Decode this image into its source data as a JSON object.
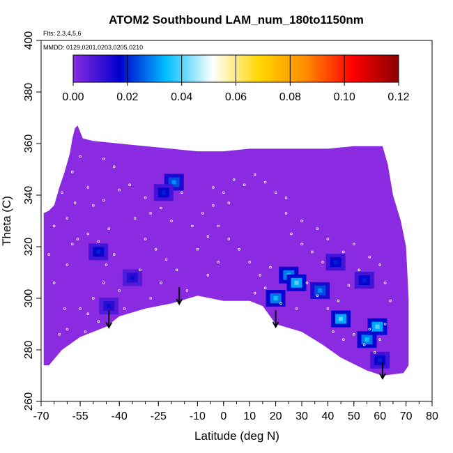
{
  "chart_data": {
    "type": "heatmap",
    "title": "ATOM2 Southbound LAM_num_180to1150nm",
    "annotations": [
      "Flts: 2,3,4,5,6",
      "MMDD: 0129,0201,0203,0205,0210"
    ],
    "xlabel": "Latitude (deg N)",
    "ylabel": "Theta (C)",
    "xlim": [
      -70,
      80
    ],
    "ylim": [
      260,
      400
    ],
    "xticks": [
      -70,
      -55,
      -40,
      -25,
      -10,
      0,
      10,
      20,
      30,
      40,
      50,
      60,
      70,
      80
    ],
    "xtick_labels": [
      "-70",
      "-55",
      "-40",
      "-25",
      "-10",
      "0",
      "10",
      "20",
      "30",
      "40",
      "50",
      "60",
      "70",
      "80"
    ],
    "yticks": [
      260,
      280,
      300,
      320,
      340,
      360,
      380,
      400
    ],
    "ytick_labels": [
      "260",
      "280",
      "300",
      "320",
      "340",
      "360",
      "380",
      "400"
    ],
    "colorbar": {
      "range": [
        0,
        0.12
      ],
      "ticks": [
        0.0,
        0.02,
        0.04,
        0.06,
        0.08,
        0.1,
        0.12
      ],
      "tick_labels": [
        "0.00",
        "0.02",
        "0.04",
        "0.06",
        "0.08",
        "0.10",
        "0.12"
      ],
      "colors": [
        "#8a2be2",
        "#0000cd",
        "#00bfff",
        "#ffffff",
        "#ffd700",
        "#ff8c00",
        "#ff0000",
        "#8b0000"
      ]
    },
    "field_background_value": 0.0,
    "filled_region_boundary": [
      [
        -69,
        274
      ],
      [
        -69,
        333
      ],
      [
        -67,
        334
      ],
      [
        -65,
        336
      ],
      [
        -63,
        343
      ],
      [
        -61,
        349
      ],
      [
        -59,
        356
      ],
      [
        -58,
        362
      ],
      [
        -57,
        366
      ],
      [
        -56,
        367
      ],
      [
        -54,
        362
      ],
      [
        -50,
        361
      ],
      [
        -40,
        360
      ],
      [
        -30,
        359
      ],
      [
        -20,
        358
      ],
      [
        -10,
        357
      ],
      [
        0,
        357
      ],
      [
        10,
        358
      ],
      [
        20,
        358
      ],
      [
        30,
        358
      ],
      [
        40,
        358
      ],
      [
        50,
        359
      ],
      [
        61,
        359
      ],
      [
        63,
        352
      ],
      [
        65,
        340
      ],
      [
        68,
        330
      ],
      [
        70,
        320
      ],
      [
        71,
        300
      ],
      [
        71,
        274
      ],
      [
        69,
        271
      ],
      [
        61,
        270
      ],
      [
        55,
        272
      ],
      [
        45,
        277
      ],
      [
        38,
        282
      ],
      [
        30,
        287
      ],
      [
        20,
        290
      ],
      [
        15,
        297
      ],
      [
        10,
        299
      ],
      [
        0,
        299
      ],
      [
        -10,
        301
      ],
      [
        -20,
        298
      ],
      [
        -30,
        296
      ],
      [
        -40,
        293
      ],
      [
        -45,
        289
      ],
      [
        -50,
        287
      ],
      [
        -55,
        285
      ],
      [
        -62,
        280
      ],
      [
        -67,
        274
      ]
    ],
    "hotspots": [
      {
        "lat": -19,
        "theta": 345,
        "value": 0.03
      },
      {
        "lat": -23,
        "theta": 341,
        "value": 0.02
      },
      {
        "lat": -35,
        "theta": 308,
        "value": 0.015
      },
      {
        "lat": -48,
        "theta": 318,
        "value": 0.02
      },
      {
        "lat": -44,
        "theta": 297,
        "value": 0.015
      },
      {
        "lat": 20,
        "theta": 300,
        "value": 0.035
      },
      {
        "lat": 25,
        "theta": 309,
        "value": 0.035
      },
      {
        "lat": 28,
        "theta": 306,
        "value": 0.04
      },
      {
        "lat": 37,
        "theta": 303,
        "value": 0.03
      },
      {
        "lat": 45,
        "theta": 292,
        "value": 0.04
      },
      {
        "lat": 43,
        "theta": 314,
        "value": 0.02
      },
      {
        "lat": 54,
        "theta": 307,
        "value": 0.02
      },
      {
        "lat": 55,
        "theta": 284,
        "value": 0.035
      },
      {
        "lat": 59,
        "theta": 289,
        "value": 0.04
      },
      {
        "lat": 60,
        "theta": 276,
        "value": 0.02
      }
    ],
    "arrows_lat": [
      -44,
      -17,
      20,
      61
    ],
    "points": [
      [
        -60,
        313
      ],
      [
        -58,
        321
      ],
      [
        -56,
        323
      ],
      [
        -52,
        325
      ],
      [
        -48,
        322
      ],
      [
        -44,
        327
      ],
      [
        -42,
        317
      ],
      [
        -50,
        300
      ],
      [
        -46,
        306
      ],
      [
        -55,
        296
      ],
      [
        -52,
        294
      ],
      [
        -40,
        303
      ],
      [
        -38,
        296
      ],
      [
        -36,
        290
      ],
      [
        -60,
        288
      ],
      [
        -63,
        286
      ],
      [
        -57,
        283
      ],
      [
        -53,
        287
      ],
      [
        -48,
        291
      ],
      [
        -30,
        323
      ],
      [
        -26,
        319
      ],
      [
        -22,
        315
      ],
      [
        -18,
        311
      ],
      [
        -14,
        303
      ],
      [
        -10,
        319
      ],
      [
        -6,
        324
      ],
      [
        -2,
        328
      ],
      [
        2,
        323
      ],
      [
        6,
        319
      ],
      [
        10,
        314
      ],
      [
        14,
        309
      ],
      [
        18,
        312
      ],
      [
        -34,
        331
      ],
      [
        -28,
        333
      ],
      [
        -24,
        335
      ],
      [
        -20,
        330
      ],
      [
        -12,
        328
      ],
      [
        -8,
        333
      ],
      [
        -4,
        336
      ],
      [
        0,
        341
      ],
      [
        4,
        346
      ],
      [
        8,
        344
      ],
      [
        12,
        348
      ],
      [
        16,
        345
      ],
      [
        20,
        341
      ],
      [
        24,
        339
      ],
      [
        -50,
        336
      ],
      [
        -46,
        338
      ],
      [
        -40,
        342
      ],
      [
        -36,
        344
      ],
      [
        -30,
        339
      ],
      [
        -42,
        351
      ],
      [
        -46,
        354
      ],
      [
        -55,
        355
      ],
      [
        -58,
        349
      ],
      [
        -62,
        341
      ],
      [
        -65,
        328
      ],
      [
        -67,
        317
      ],
      [
        -65,
        306
      ],
      [
        -61,
        296
      ],
      [
        26,
        325
      ],
      [
        30,
        321
      ],
      [
        34,
        318
      ],
      [
        38,
        314
      ],
      [
        32,
        306
      ],
      [
        36,
        301
      ],
      [
        40,
        296
      ],
      [
        44,
        299
      ],
      [
        48,
        305
      ],
      [
        52,
        311
      ],
      [
        56,
        316
      ],
      [
        60,
        313
      ],
      [
        62,
        306
      ],
      [
        64,
        299
      ],
      [
        46,
        318
      ],
      [
        50,
        321
      ],
      [
        40,
        323
      ],
      [
        36,
        327
      ],
      [
        30,
        330
      ],
      [
        24,
        333
      ],
      [
        56,
        288
      ],
      [
        54,
        282
      ],
      [
        58,
        279
      ],
      [
        60,
        284
      ],
      [
        62,
        290
      ],
      [
        50,
        286
      ],
      [
        46,
        284
      ],
      [
        42,
        287
      ],
      [
        28,
        296
      ],
      [
        22,
        298
      ],
      [
        16,
        304
      ],
      [
        12,
        302
      ],
      [
        -6,
        309
      ],
      [
        -2,
        314
      ],
      [
        -24,
        306
      ],
      [
        -28,
        300
      ],
      [
        -32,
        311
      ],
      [
        -45,
        313
      ],
      [
        -60,
        331
      ],
      [
        -57,
        337
      ],
      [
        -52,
        343
      ],
      [
        -4,
        343
      ],
      [
        2,
        337
      ],
      [
        -16,
        341
      ]
    ]
  }
}
